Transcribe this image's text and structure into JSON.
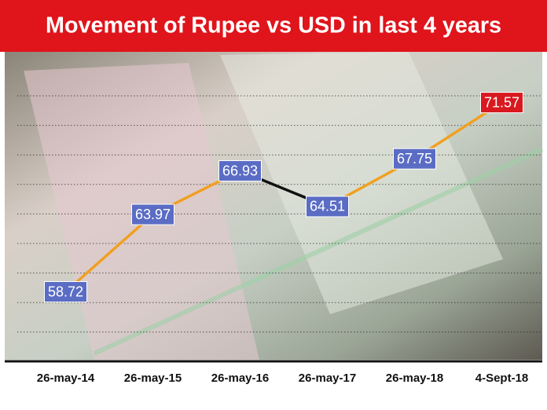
{
  "chart_data": {
    "type": "line",
    "title": "Movement of Rupee vs USD in last 4 years",
    "categories": [
      "26-may-14",
      "26-may-15",
      "26-may-16",
      "26-may-17",
      "26-may-18",
      "4-Sept-18"
    ],
    "values": [
      58.72,
      63.97,
      66.93,
      64.51,
      67.75,
      71.57
    ],
    "color": "#f0a020",
    "decrease_color": "#111111",
    "label_color": "#5a6cc4",
    "last_label_color": "#d8191f",
    "ylim": [
      54,
      74
    ],
    "grid": true
  }
}
